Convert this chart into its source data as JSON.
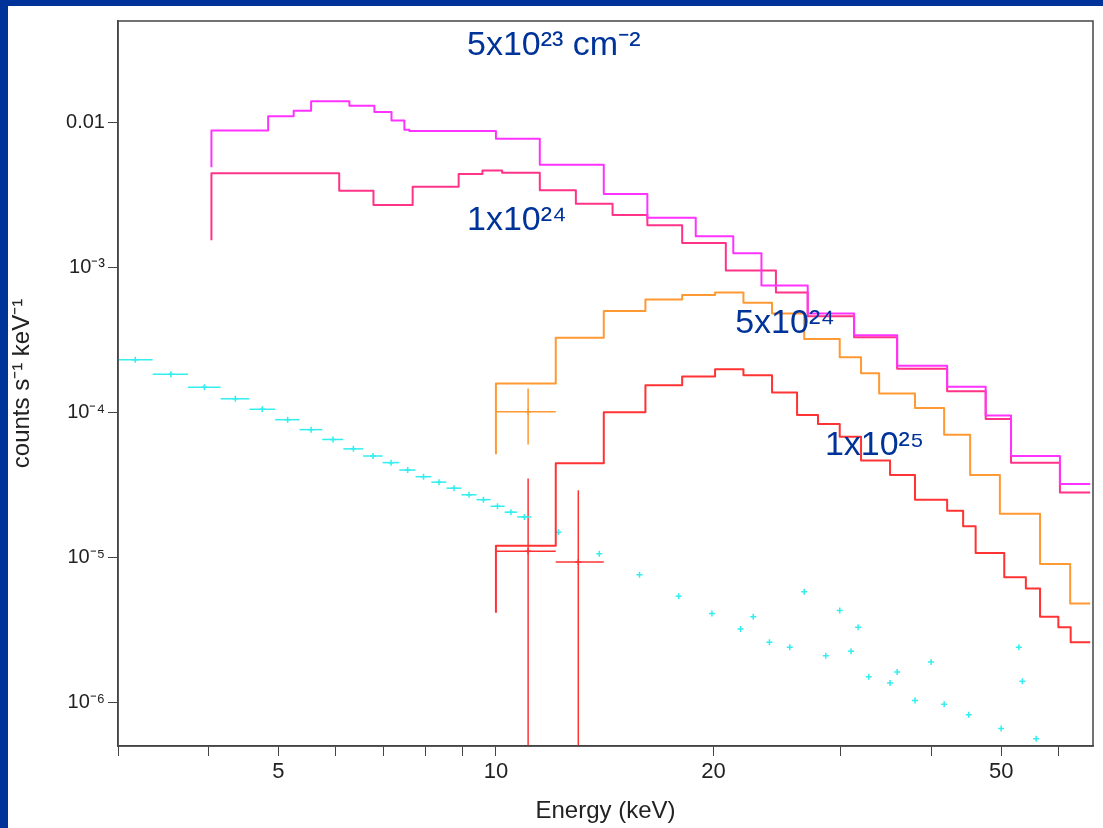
{
  "chart_data": {
    "type": "step",
    "xlabel": "Energy (keV)",
    "ylabel": "counts s⁻¹ keV⁻¹",
    "log": "xy",
    "grid": false,
    "legend": false,
    "xlim": [
      3,
      67
    ],
    "ylim": [
      5e-07,
      0.05
    ],
    "xticks": [
      {
        "value": 3,
        "label": null
      },
      {
        "value": 4,
        "label": null
      },
      5,
      {
        "value": 6,
        "label": null
      },
      {
        "value": 7,
        "label": null
      },
      {
        "value": 8,
        "label": null
      },
      {
        "value": 9,
        "label": null
      },
      10,
      20,
      {
        "value": 30,
        "label": null
      },
      {
        "value": 40,
        "label": null
      },
      50,
      {
        "value": 60,
        "label": null
      }
    ],
    "yticks": [
      {
        "value": 1e-06,
        "label": "10⁻⁶"
      },
      {
        "value": 1e-05,
        "label": "10⁻⁵"
      },
      {
        "value": 0.0001,
        "label": "10⁻⁴"
      },
      {
        "value": 0.001,
        "label": "10⁻³"
      },
      0.01
    ],
    "annotations": [
      "5x10²³ cm⁻²",
      "1x10²⁴",
      "5x10²⁴",
      "1x10²⁵"
    ],
    "series": [
      {
        "type": "step",
        "color": "#ff33ff",
        "x": [
          4.04,
          4.84,
          5.25,
          5.55,
          6.27,
          6.79,
          7.17,
          7.47,
          7.59,
          10,
          11.5,
          14.1,
          16.2,
          18.9,
          21.3,
          23.3,
          27,
          31.3,
          35.9,
          42.1,
          47.6,
          51.6,
          60.3,
          66.4
        ],
        "values": [
          0.0049,
          0.0088,
          0.011,
          0.012,
          0.014,
          0.013,
          0.0118,
          0.0103,
          0.0089,
          0.0087,
          0.0077,
          0.0051,
          0.0032,
          0.0022,
          0.00164,
          0.00125,
          0.00075,
          0.00048,
          0.00034,
          0.00021,
          0.00015,
          9.5e-05,
          5e-05,
          3.2e-05
        ]
      },
      {
        "type": "step",
        "color": "#ff3388",
        "x": [
          4.04,
          6.07,
          6.77,
          7.67,
          8.88,
          9.58,
          10.2,
          11.5,
          12.9,
          14.5,
          16.2,
          18.1,
          20.8,
          24.4,
          27,
          31.3,
          35.9,
          42.1,
          47.6,
          51.6,
          60.3,
          66.4
        ],
        "values": [
          0.00154,
          0.00446,
          0.00337,
          0.00269,
          0.0036,
          0.0044,
          0.00465,
          0.0045,
          0.0034,
          0.00275,
          0.0023,
          0.00195,
          0.00147,
          0.00095,
          0.00067,
          0.00046,
          0.00033,
          0.0002,
          0.00014,
          9e-05,
          4.5e-05,
          2.8e-05
        ]
      },
      {
        "type": "step",
        "color": "#ff9933",
        "x": [
          10,
          12.1,
          14.1,
          16.1,
          18.1,
          20.1,
          22,
          24.1,
          26.7,
          29.9,
          32,
          33.9,
          38,
          41.7,
          45.3,
          49.8,
          56.6,
          62.3,
          66.4
        ],
        "values": [
          5.15e-05,
          0.000158,
          0.000327,
          0.0005,
          0.0006,
          0.000645,
          0.00067,
          0.00057,
          0.00048,
          0.00032,
          0.00024,
          0.000186,
          0.000135,
          0.000107,
          7e-05,
          3.7e-05,
          2e-05,
          9e-06,
          4.8e-06
        ]
      },
      {
        "type": "step",
        "color": "#ff3333",
        "x": [
          10,
          12.1,
          14.1,
          16.1,
          18.1,
          20.1,
          22,
          24.1,
          26.1,
          27.9,
          29.9,
          32,
          35.1,
          38,
          42.1,
          44.3,
          46.1,
          50.5,
          54.1,
          56.6,
          60,
          62.4,
          66.4
        ],
        "values": [
          4.15e-06,
          1.2e-05,
          4.45e-05,
          0.0001,
          0.000154,
          0.000177,
          0.000198,
          0.00018,
          0.000137,
          9.6e-05,
          8.3e-05,
          6.8e-05,
          4.65e-05,
          3.7e-05,
          2.5e-05,
          2.1e-05,
          1.64e-05,
          1.07e-05,
          7.3e-06,
          6.1e-06,
          3.9e-06,
          3.3e-06,
          2.6e-06
        ]
      },
      {
        "type": "scatter",
        "color": "#ff9933",
        "marker": "cross",
        "x": [
          11.08
        ],
        "values": [
          0.000101
        ],
        "errors": [
          [
            6e-05,
            0.000146
          ]
        ],
        "xerrors": [
          [
            10,
            12.1
          ]
        ]
      },
      {
        "type": "scatter",
        "color": "#ff3333",
        "marker": "cross",
        "x": [
          11.08,
          13
        ],
        "values": [
          1.1e-05,
          9.3e-06
        ],
        "errors": [
          [
            5e-07,
            3.5e-05
          ],
          [
            5e-07,
            2.9e-05
          ]
        ],
        "xerrors": [
          [
            10,
            12.1
          ],
          [
            12.1,
            14.1
          ]
        ]
      },
      {
        "type": "scatter",
        "color": "#33eeee",
        "marker": "cross",
        "x": [
          3.17,
          3.55,
          3.95,
          4.36,
          4.75,
          5.15,
          5.55,
          5.95,
          6.35,
          6.76,
          7.16,
          7.55,
          7.94,
          8.34,
          8.75,
          9.18,
          9.61,
          10.05,
          10.49,
          10.95,
          12.2,
          13.9,
          15.8,
          17.9,
          19.9,
          21.8,
          22.7,
          23.9,
          25.5,
          26.7,
          28.6,
          29.9,
          31,
          31.7,
          32.8,
          35.1,
          35.9,
          38,
          40,
          41.7,
          45.1,
          50,
          52.9,
          53.5,
          55.9
        ],
        "values": [
          0.000231,
          0.000183,
          0.000149,
          0.000124,
          0.000105,
          8.9e-05,
          7.6e-05,
          6.5e-05,
          5.6e-05,
          5e-05,
          4.5e-05,
          4e-05,
          3.6e-05,
          3.3e-05,
          3e-05,
          2.7e-05,
          2.5e-05,
          2.25e-05,
          2.05e-05,
          1.9e-05,
          1.49e-05,
          1.06e-05,
          7.6e-06,
          5.4e-06,
          4.1e-06,
          3.2e-06,
          3.9e-06,
          2.6e-06,
          2.4e-06,
          5.8e-06,
          2.1e-06,
          4.3e-06,
          2.25e-06,
          3.3e-06,
          1.5e-06,
          1.36e-06,
          1.62e-06,
          1.03e-06,
          1.9e-06,
          9.7e-07,
          8.2e-07,
          6.6e-07,
          2.4e-06,
          1.4e-06,
          5.6e-07
        ],
        "xerrors": [
          [
            2.99,
            3.35
          ],
          [
            3.35,
            3.75
          ],
          [
            3.75,
            4.16
          ],
          [
            4.16,
            4.56
          ],
          [
            4.56,
            4.95
          ],
          [
            4.95,
            5.35
          ],
          [
            5.35,
            5.75
          ],
          [
            5.75,
            6.15
          ],
          [
            6.15,
            6.55
          ],
          [
            6.55,
            6.97
          ],
          [
            6.97,
            7.35
          ],
          [
            7.35,
            7.74
          ],
          [
            7.74,
            8.14
          ],
          [
            8.14,
            8.54
          ],
          [
            8.54,
            8.96
          ],
          [
            8.96,
            9.4
          ],
          [
            9.4,
            9.83
          ],
          [
            9.83,
            10.28
          ],
          [
            10.28,
            10.7
          ],
          [
            10.7,
            11.2
          ],
          null,
          null,
          null,
          null,
          null,
          null,
          null,
          null,
          null,
          null,
          null,
          null,
          null,
          null,
          null,
          null,
          null,
          null,
          null,
          null,
          null,
          null,
          null,
          null,
          null
        ]
      }
    ]
  }
}
